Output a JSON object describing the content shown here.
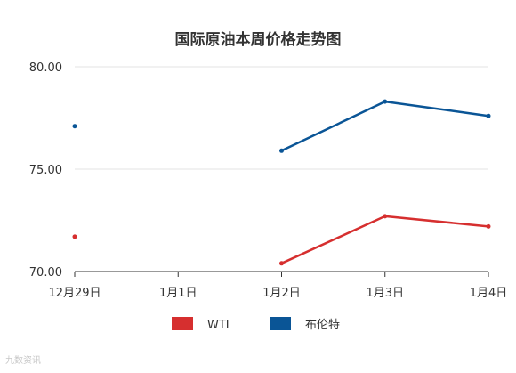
{
  "chart_data": {
    "type": "line",
    "title": "国际原油本周价格走势图",
    "categories": [
      "12月29日",
      "1月1日",
      "1月2日",
      "1月3日",
      "1月4日"
    ],
    "y_ticks": [
      "80.00",
      "75.00",
      "70.00"
    ],
    "ylim": [
      70,
      80
    ],
    "grid": true,
    "legend_position": "bottom",
    "series": [
      {
        "name": "WTI",
        "color": "#d62f2f",
        "values": [
          71.7,
          null,
          70.4,
          72.7,
          72.2
        ]
      },
      {
        "name": "布伦特",
        "color": "#0a5596",
        "values": [
          77.1,
          null,
          75.9,
          78.3,
          77.6
        ]
      }
    ]
  },
  "watermark": {
    "text": "九数资讯"
  }
}
